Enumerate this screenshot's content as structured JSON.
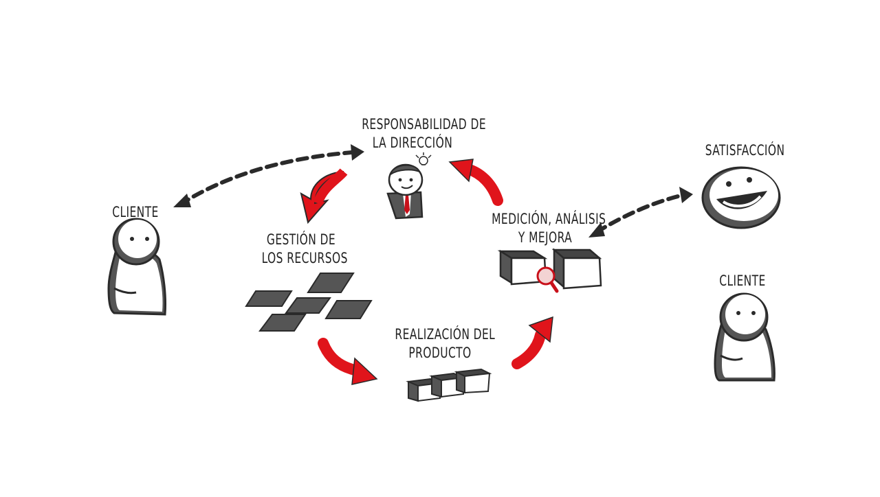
{
  "labels": {
    "cliente_left": "CLIENTE",
    "cliente_right": "CLIENTE",
    "satisfaccion": "SATISFACCIÓN",
    "responsabilidad_line1": "RESPONSABILIDAD DE",
    "responsabilidad_line2": "LA DIRECCIÓN",
    "gestion_line1": "GESTIÓN DE",
    "gestion_line2": "LOS RECURSOS",
    "realizacion_line1": "REALIZACIÓN DEL",
    "realizacion_line2": "PRODUCTO",
    "medicion_line1": "MEDICIÓN, ANÁLISIS",
    "medicion_line2": "Y MEJORA"
  },
  "colors": {
    "cycle_arrow": "#e0141b",
    "ink": "#2a2a2a",
    "figure_fill": "#ffffff",
    "box_dark": "#555555",
    "tie": "#c8101a"
  },
  "icons": [
    "client-figure",
    "manager-figure",
    "resource-tiles",
    "product-boxes",
    "measure-boxes-magnifier",
    "smiley-face"
  ]
}
